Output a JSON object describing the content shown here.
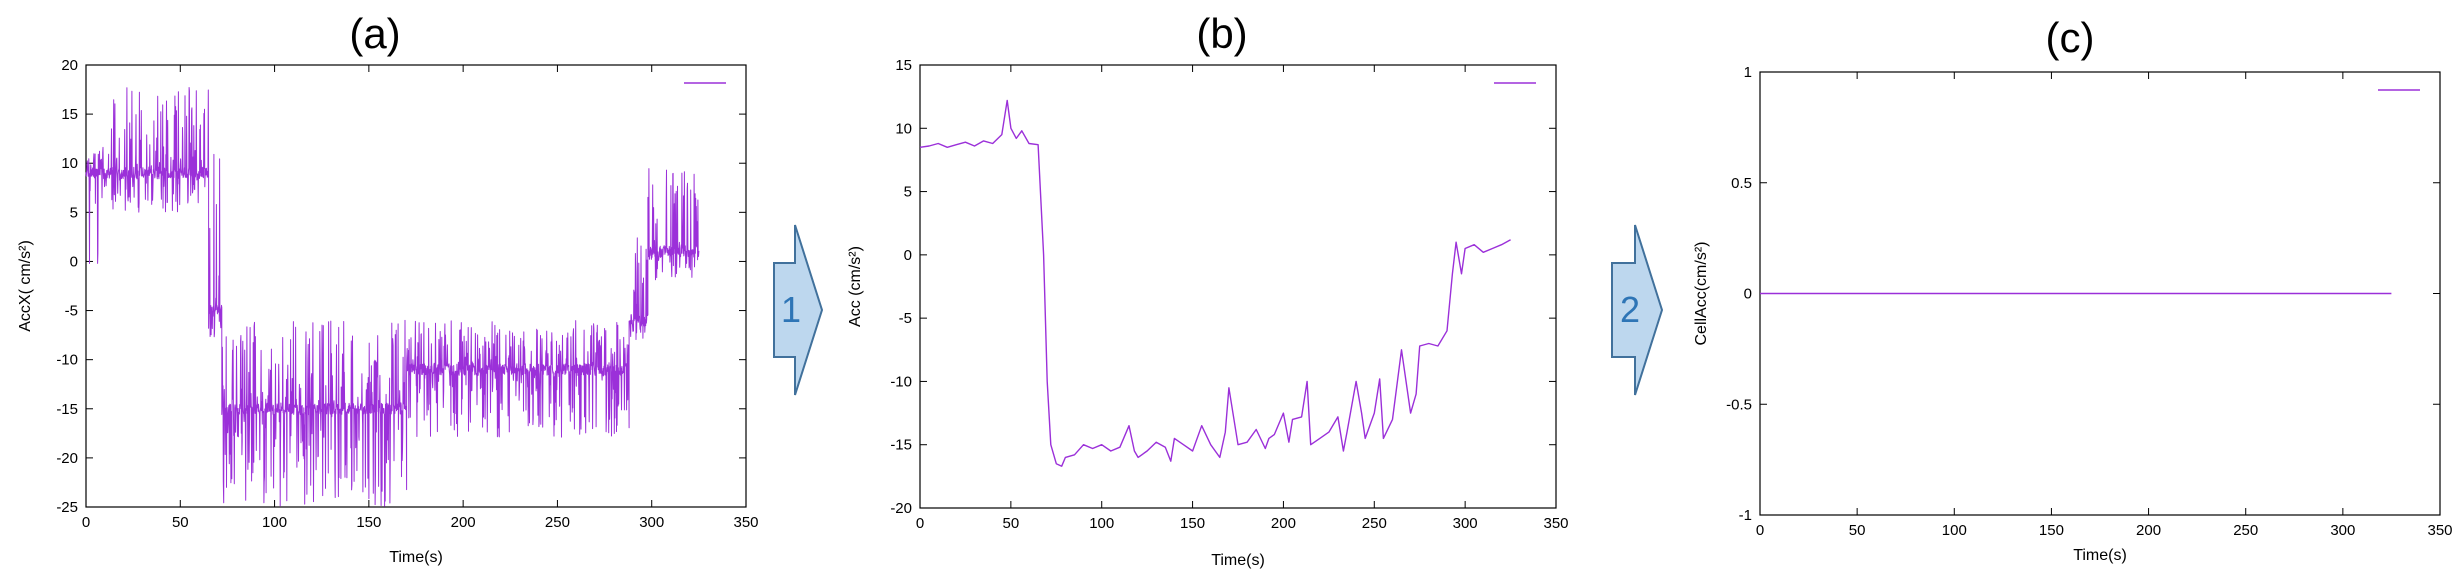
{
  "colors": {
    "series": "#9b30d9",
    "arrow_fill": "#bdd7ee",
    "arrow_stroke": "#41719c",
    "arrow_text": "#2e75b6"
  },
  "panels": [
    {
      "title": "(a)"
    },
    {
      "title": "(b)"
    },
    {
      "title": "(c)"
    }
  ],
  "steps": [
    {
      "label": "1"
    },
    {
      "label": "2"
    }
  ],
  "chart_data": [
    {
      "type": "line",
      "title": "",
      "xlabel": "Time(s)",
      "ylabel": "AccX( cm/s²)",
      "xlim": [
        0,
        350
      ],
      "ylim": [
        -25,
        20
      ],
      "xticks": [
        0,
        50,
        100,
        150,
        200,
        250,
        300,
        350
      ],
      "yticks": [
        20,
        15,
        10,
        5,
        0,
        -5,
        -10,
        -15,
        -20,
        -25
      ],
      "legend": "top-right",
      "grid": false,
      "series": [
        {
          "segments": [
            {
              "x": [
                0,
                12
              ],
              "center": 9,
              "low": -0.5,
              "high": 12
            },
            {
              "x": [
                12,
                65
              ],
              "center": 9,
              "low": 5,
              "high": 18
            },
            {
              "x": [
                65,
                72
              ],
              "center": -5,
              "low": -8,
              "high": 12
            },
            {
              "x": [
                72,
                170
              ],
              "center": -15,
              "low": -25,
              "high": -6
            },
            {
              "x": [
                170,
                288
              ],
              "center": -11,
              "low": -18,
              "high": -6
            },
            {
              "x": [
                288,
                298
              ],
              "center": -6,
              "low": -8,
              "high": 3
            },
            {
              "x": [
                298,
                325
              ],
              "center": 1,
              "low": -2,
              "high": 9.7
            }
          ]
        }
      ]
    },
    {
      "type": "line",
      "title": "",
      "xlabel": "Time(s)",
      "ylabel": "Acc (cm/s²)",
      "xlim": [
        0,
        350
      ],
      "ylim": [
        -20,
        15
      ],
      "xticks": [
        0,
        50,
        100,
        150,
        200,
        250,
        300,
        350
      ],
      "yticks": [
        15,
        10,
        5,
        0,
        -5,
        -10,
        -15,
        -20
      ],
      "legend": "top-right",
      "grid": false,
      "series": [
        {
          "x": [
            0,
            5,
            10,
            15,
            20,
            25,
            30,
            35,
            40,
            45,
            48,
            50,
            53,
            56,
            60,
            65,
            68,
            70,
            72,
            75,
            78,
            80,
            85,
            90,
            95,
            100,
            105,
            110,
            115,
            118,
            120,
            125,
            130,
            135,
            138,
            140,
            145,
            150,
            155,
            160,
            165,
            168,
            170,
            175,
            180,
            185,
            190,
            192,
            195,
            200,
            203,
            205,
            210,
            213,
            215,
            220,
            225,
            230,
            233,
            235,
            240,
            243,
            245,
            250,
            253,
            255,
            260,
            265,
            270,
            273,
            275,
            280,
            285,
            290,
            293,
            295,
            298,
            300,
            305,
            310,
            315,
            320,
            325
          ],
          "y": [
            8.5,
            8.6,
            8.8,
            8.5,
            8.7,
            8.9,
            8.6,
            9,
            8.8,
            9.5,
            12.2,
            10,
            9.2,
            9.8,
            8.8,
            8.7,
            0,
            -10,
            -15,
            -16.5,
            -16.7,
            -16,
            -15.8,
            -15,
            -15.3,
            -15,
            -15.5,
            -15.2,
            -13.5,
            -15.5,
            -16,
            -15.5,
            -14.8,
            -15.2,
            -16.3,
            -14.5,
            -15,
            -15.5,
            -13.5,
            -15,
            -16,
            -14,
            -10.5,
            -15,
            -14.8,
            -13.8,
            -15.3,
            -14.5,
            -14.2,
            -12.5,
            -14.8,
            -13,
            -12.8,
            -10,
            -15,
            -14.5,
            -14,
            -12.8,
            -15.5,
            -14,
            -10,
            -12.5,
            -14.5,
            -12.5,
            -9.8,
            -14.5,
            -13,
            -7.5,
            -12.5,
            -11,
            -7.2,
            -7,
            -7.2,
            -6,
            -1.5,
            1,
            -1.5,
            0.5,
            0.8,
            0.2,
            0.5,
            0.8,
            1.2
          ]
        }
      ]
    },
    {
      "type": "line",
      "title": "",
      "xlabel": "Time(s)",
      "ylabel": "CellAcc(cm/s²)",
      "xlim": [
        0,
        350
      ],
      "ylim": [
        -1,
        1
      ],
      "xticks": [
        0,
        50,
        100,
        150,
        200,
        250,
        300,
        350
      ],
      "yticks": [
        1,
        0.5,
        0,
        -0.5,
        -1
      ],
      "legend": "top-right",
      "grid": false,
      "series": [
        {
          "x": [
            0,
            325
          ],
          "y": [
            0,
            0
          ]
        }
      ]
    }
  ]
}
